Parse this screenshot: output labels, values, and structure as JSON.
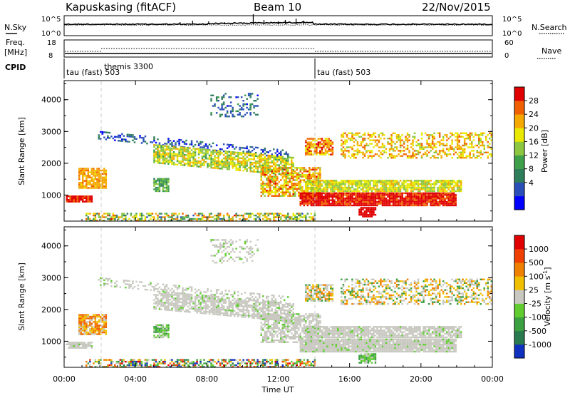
{
  "header": {
    "station": "Kapuskasing (fitACF)",
    "beam": "Beam 10",
    "date": "22/Nov/2015"
  },
  "noise_panel": {
    "left_label": "N.Sky",
    "right_label": "N.Search",
    "left_ticks": [
      "10^5",
      "10^0"
    ],
    "right_ticks": [
      "10^5",
      "10^0"
    ]
  },
  "freq_panel": {
    "label_line1": "Freq.",
    "label_line2": "[MHz]",
    "right_label": "Nave",
    "left_ticks": [
      "18",
      "8"
    ],
    "right_ticks": [
      "60",
      "0"
    ]
  },
  "cpid": {
    "label": "CPID",
    "modes": [
      {
        "name": "tau (fast) 503",
        "start_hour": 0
      },
      {
        "name": "themis 3300",
        "start_hour": 2
      },
      {
        "name": "tau (fast) 503",
        "start_hour": 14
      }
    ]
  },
  "chart_data": [
    {
      "type": "heatmap",
      "quantity": "Power",
      "colorbar_label": "Power [dB]",
      "colorbar_ticks": [
        "28",
        "24",
        "20",
        "16",
        "12",
        "8",
        "4"
      ],
      "colors": [
        "#0000ff",
        "#2a4fb8",
        "#2f7e5b",
        "#3fa04a",
        "#8dc63f",
        "#e8e800",
        "#f5a800",
        "#f06000",
        "#e00000"
      ],
      "ylabel": "Slant Range [km]",
      "y_ticks": [
        "4000",
        "3000",
        "2000",
        "1000"
      ],
      "ylim": [
        180,
        4600
      ],
      "x_hours": [
        0,
        24
      ]
    },
    {
      "type": "heatmap",
      "quantity": "Velocity",
      "colorbar_label": "Velocity [m s^-1]",
      "colorbar_ticks": [
        "1000",
        "500",
        "100",
        "25",
        "-25",
        "-100",
        "-500",
        "-1000"
      ],
      "colors": [
        "#1030c0",
        "#2a7a50",
        "#3aa040",
        "#60cc30",
        "#c8c8c0",
        "#f0c000",
        "#f08000",
        "#f04000",
        "#e00000"
      ],
      "ylabel": "Slant Range [km]",
      "y_ticks": [
        "4000",
        "3000",
        "2000",
        "1000"
      ],
      "ylim": [
        180,
        4600
      ],
      "x_hours": [
        0,
        24
      ]
    }
  ],
  "x_axis": {
    "label": "Time UT",
    "ticks": [
      "00:00",
      "04:00",
      "08:00",
      "12:00",
      "16:00",
      "20:00",
      "00:00"
    ]
  }
}
